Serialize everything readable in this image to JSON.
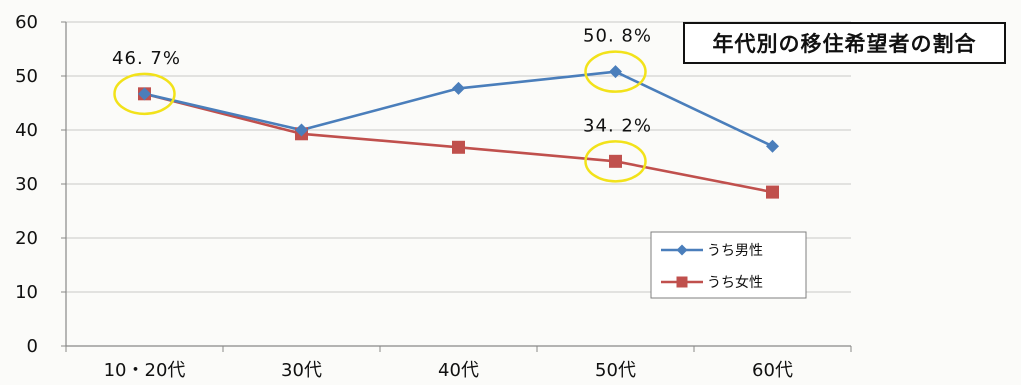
{
  "chart_data": {
    "type": "line",
    "title": "年代別の移住希望者の割合",
    "categories": [
      "10・20代",
      "30代",
      "40代",
      "50代",
      "60代"
    ],
    "series": [
      {
        "name": "うち男性",
        "values": [
          46.7,
          40.0,
          47.7,
          50.8,
          37.0
        ],
        "color": "#4a7ebb",
        "marker": "diamond"
      },
      {
        "name": "うち女性",
        "values": [
          46.7,
          39.3,
          36.8,
          34.2,
          28.5
        ],
        "color": "#c0504d",
        "marker": "square"
      }
    ],
    "ylim": [
      0,
      60
    ],
    "yticks": [
      0,
      10,
      20,
      30,
      40,
      50,
      60
    ],
    "grid": true,
    "legend_position": "right",
    "annotations": [
      {
        "text": "46. 7%",
        "category": "10・20代",
        "value": 46.7,
        "highlight_color": "#f2e21a"
      },
      {
        "text": "50. 8%",
        "category": "50代",
        "value": 50.8,
        "highlight_color": "#f2e21a"
      },
      {
        "text": "34. 2%",
        "category": "50代",
        "value": 34.2,
        "highlight_color": "#f2e21a"
      }
    ]
  }
}
